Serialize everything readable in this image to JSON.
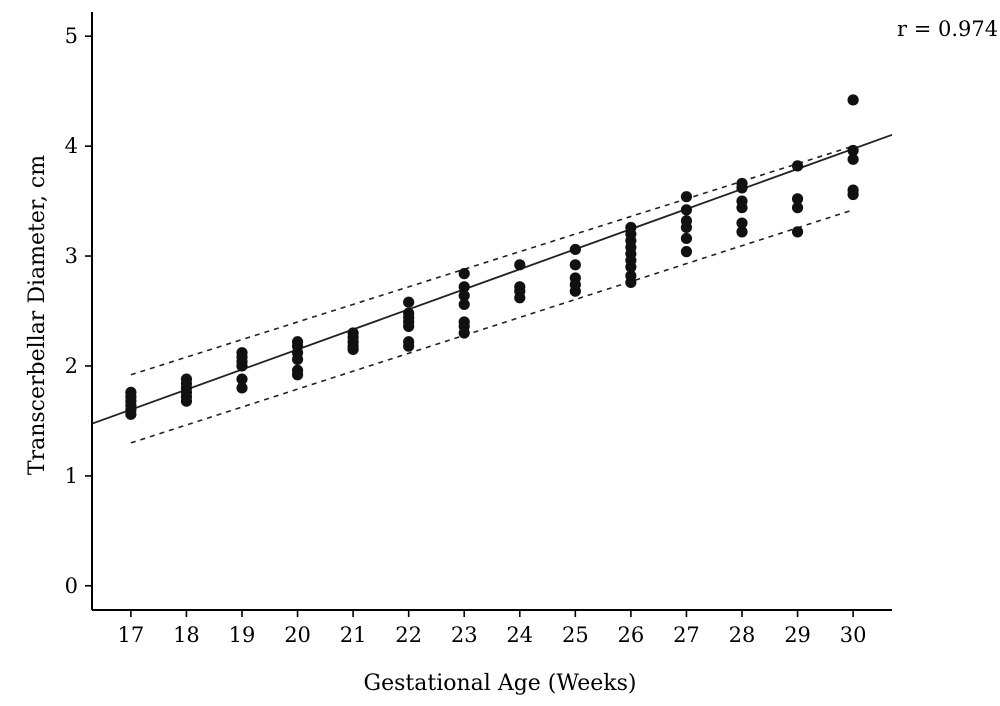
{
  "chart_data": {
    "type": "scatter",
    "title": "",
    "xlabel": "Gestational Age (Weeks)",
    "ylabel": "Transcerbellar Diameter, cm",
    "annotation": "r = 0.974",
    "xlim": [
      16.3,
      30.7
    ],
    "ylim": [
      -0.22,
      5.22
    ],
    "xticks": [
      17,
      18,
      19,
      20,
      21,
      22,
      23,
      24,
      25,
      26,
      27,
      28,
      29,
      30
    ],
    "yticks": [
      0,
      1,
      2,
      3,
      4,
      5
    ],
    "grid": false,
    "regression_line": {
      "intercept": -1.5,
      "slope": 0.1825,
      "x_range": [
        16.3,
        30.7
      ]
    },
    "ci_upper": {
      "x": [
        17,
        30
      ],
      "y": [
        1.92,
        4.0
      ]
    },
    "ci_lower": {
      "x": [
        17,
        30
      ],
      "y": [
        1.3,
        3.42
      ]
    },
    "points": [
      [
        17,
        1.76
      ],
      [
        17,
        1.72
      ],
      [
        17,
        1.68
      ],
      [
        17,
        1.64
      ],
      [
        17,
        1.6
      ],
      [
        17,
        1.56
      ],
      [
        18,
        1.88
      ],
      [
        18,
        1.84
      ],
      [
        18,
        1.8
      ],
      [
        18,
        1.76
      ],
      [
        18,
        1.72
      ],
      [
        18,
        1.68
      ],
      [
        19,
        2.12
      ],
      [
        19,
        2.08
      ],
      [
        19,
        2.04
      ],
      [
        19,
        2.0
      ],
      [
        19,
        1.88
      ],
      [
        19,
        1.8
      ],
      [
        20,
        2.22
      ],
      [
        20,
        2.18
      ],
      [
        20,
        2.12
      ],
      [
        20,
        2.06
      ],
      [
        20,
        1.96
      ],
      [
        20,
        1.92
      ],
      [
        21,
        2.3
      ],
      [
        21,
        2.26
      ],
      [
        21,
        2.22
      ],
      [
        21,
        2.18
      ],
      [
        21,
        2.15
      ],
      [
        22,
        2.58
      ],
      [
        22,
        2.48
      ],
      [
        22,
        2.44
      ],
      [
        22,
        2.4
      ],
      [
        22,
        2.36
      ],
      [
        22,
        2.22
      ],
      [
        22,
        2.18
      ],
      [
        23,
        2.84
      ],
      [
        23,
        2.72
      ],
      [
        23,
        2.64
      ],
      [
        23,
        2.56
      ],
      [
        23,
        2.4
      ],
      [
        23,
        2.36
      ],
      [
        23,
        2.3
      ],
      [
        24,
        2.92
      ],
      [
        24,
        2.72
      ],
      [
        24,
        2.68
      ],
      [
        24,
        2.62
      ],
      [
        25,
        3.06
      ],
      [
        25,
        2.92
      ],
      [
        25,
        2.8
      ],
      [
        25,
        2.74
      ],
      [
        25,
        2.68
      ],
      [
        26,
        3.26
      ],
      [
        26,
        3.2
      ],
      [
        26,
        3.14
      ],
      [
        26,
        3.08
      ],
      [
        26,
        3.02
      ],
      [
        26,
        2.96
      ],
      [
        26,
        2.9
      ],
      [
        26,
        2.82
      ],
      [
        26,
        2.76
      ],
      [
        27,
        3.54
      ],
      [
        27,
        3.42
      ],
      [
        27,
        3.32
      ],
      [
        27,
        3.26
      ],
      [
        27,
        3.16
      ],
      [
        27,
        3.04
      ],
      [
        28,
        3.66
      ],
      [
        28,
        3.62
      ],
      [
        28,
        3.5
      ],
      [
        28,
        3.44
      ],
      [
        28,
        3.3
      ],
      [
        28,
        3.22
      ],
      [
        29,
        3.82
      ],
      [
        29,
        3.52
      ],
      [
        29,
        3.44
      ],
      [
        29,
        3.22
      ],
      [
        30,
        4.42
      ],
      [
        30,
        3.96
      ],
      [
        30,
        3.88
      ],
      [
        30,
        3.6
      ],
      [
        30,
        3.56
      ]
    ]
  }
}
